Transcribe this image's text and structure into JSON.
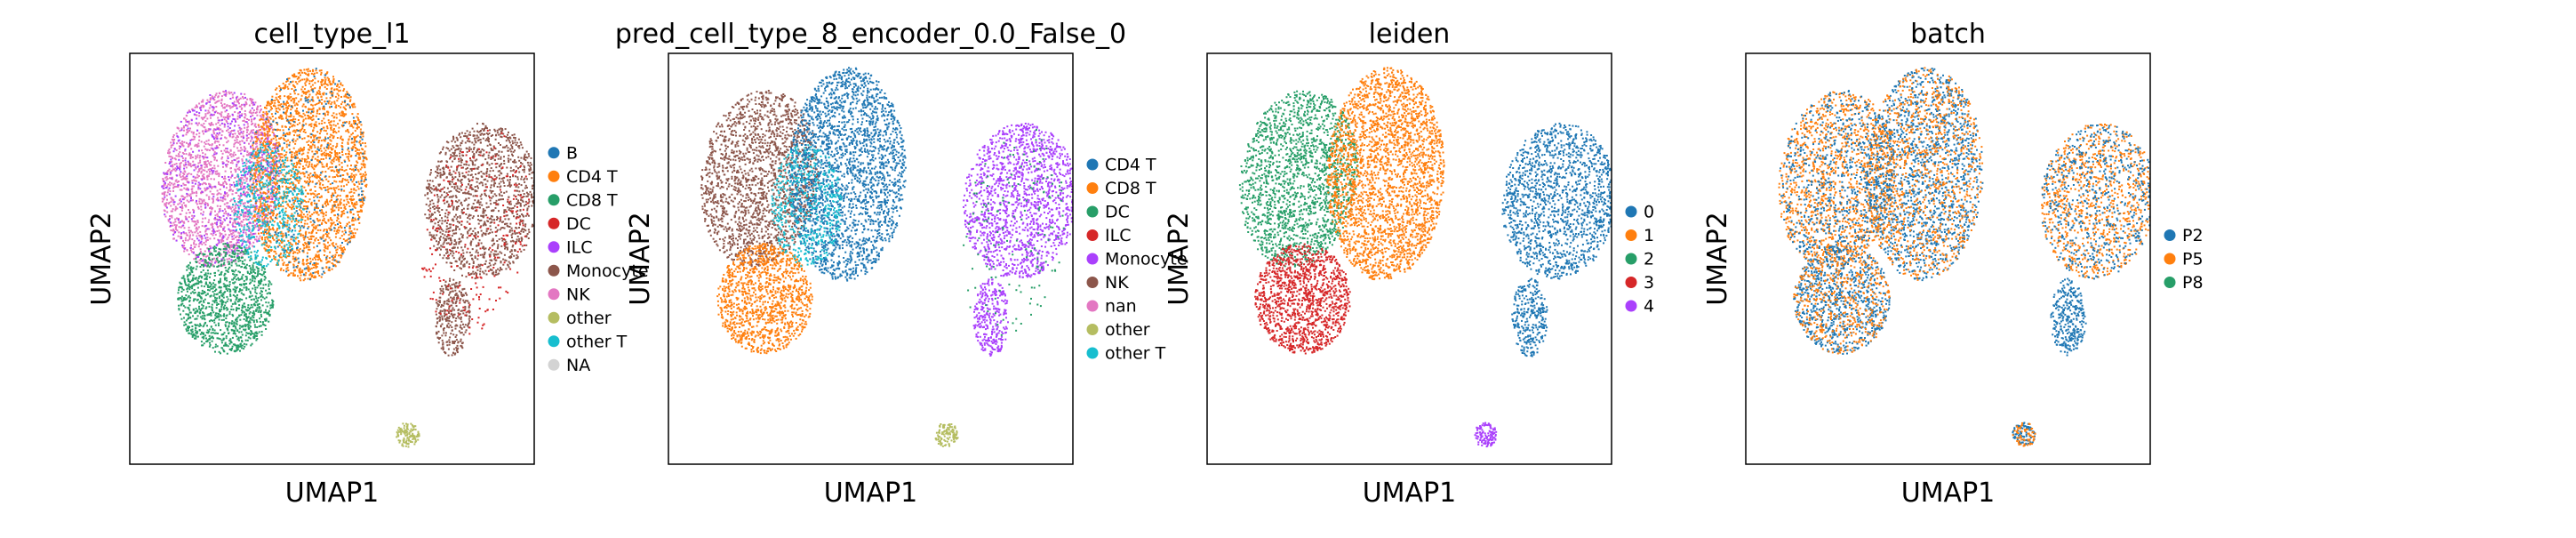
{
  "chart_data": [
    {
      "type": "scatter",
      "title": "cell_type_l1",
      "xlabel": "UMAP1",
      "ylabel": "UMAP2",
      "grid": false,
      "legend_placement": "right",
      "categories": [
        "B",
        "CD4 T",
        "CD8 T",
        "DC",
        "ILC",
        "Monocyte",
        "NK",
        "other",
        "other T",
        "NA"
      ],
      "colors": [
        "#1f77b4",
        "#ff7f0e",
        "#279e68",
        "#d62728",
        "#aa40fc",
        "#8c564b",
        "#e377c2",
        "#b5bd61",
        "#17becf",
        "#d3d3d3"
      ]
    },
    {
      "type": "scatter",
      "title": "pred_cell_type_8_encoder_0.0_False_0",
      "xlabel": "UMAP1",
      "ylabel": "UMAP2",
      "grid": false,
      "legend_placement": "right",
      "categories": [
        "CD4 T",
        "CD8 T",
        "DC",
        "ILC",
        "Monocyte",
        "NK",
        "nan",
        "other",
        "other T"
      ],
      "colors": [
        "#1f77b4",
        "#ff7f0e",
        "#279e68",
        "#d62728",
        "#aa40fc",
        "#8c564b",
        "#e377c2",
        "#b5bd61",
        "#17becf"
      ]
    },
    {
      "type": "scatter",
      "title": "leiden",
      "xlabel": "UMAP1",
      "ylabel": "UMAP2",
      "grid": false,
      "legend_placement": "right",
      "categories": [
        "0",
        "1",
        "2",
        "3",
        "4"
      ],
      "colors": [
        "#1f77b4",
        "#ff7f0e",
        "#279e68",
        "#d62728",
        "#aa40fc"
      ]
    },
    {
      "type": "scatter",
      "title": "batch",
      "xlabel": "UMAP1",
      "ylabel": "UMAP2",
      "grid": false,
      "legend_placement": "right",
      "categories": [
        "P2",
        "P5",
        "P8"
      ],
      "colors": [
        "#1f77b4",
        "#ff7f0e",
        "#279e68"
      ]
    }
  ]
}
